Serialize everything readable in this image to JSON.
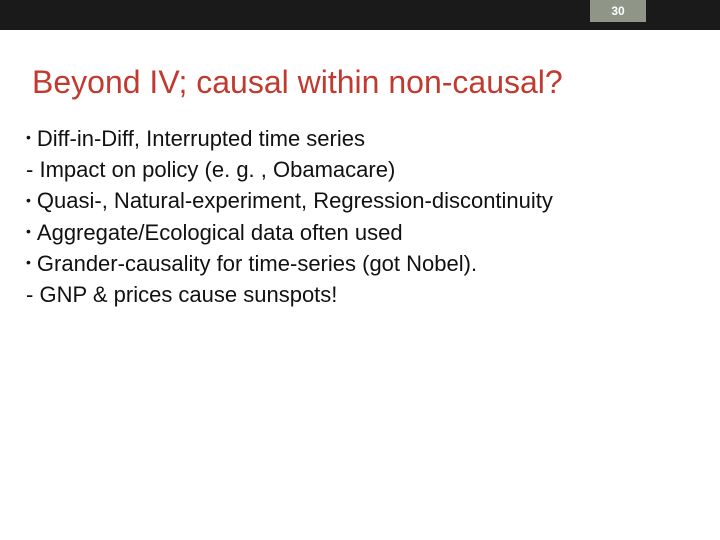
{
  "page_number": "30",
  "title": "Beyond IV; causal within non-causal?",
  "title_color": "#c13a2f",
  "topbar_color": "#1a1a1a",
  "badge_color": "#8f9587",
  "body_color": "#111111",
  "title_fontsize": 32,
  "body_fontsize": 22,
  "lines": [
    {
      "prefix": "•",
      "text": "Diff-in-Diff, Interrupted time series"
    },
    {
      "prefix": "-",
      "text": "Impact on policy (e. g. , Obamacare)"
    },
    {
      "prefix": "•",
      "text": "Quasi-, Natural-experiment, Regression-discontinuity"
    },
    {
      "prefix": "•",
      "text": "Aggregate/Ecological data often used"
    },
    {
      "prefix": "•",
      "text": "Grander-causality for time-series (got Nobel)."
    },
    {
      "prefix": "-",
      "text": "GNP & prices cause sunspots!"
    }
  ]
}
